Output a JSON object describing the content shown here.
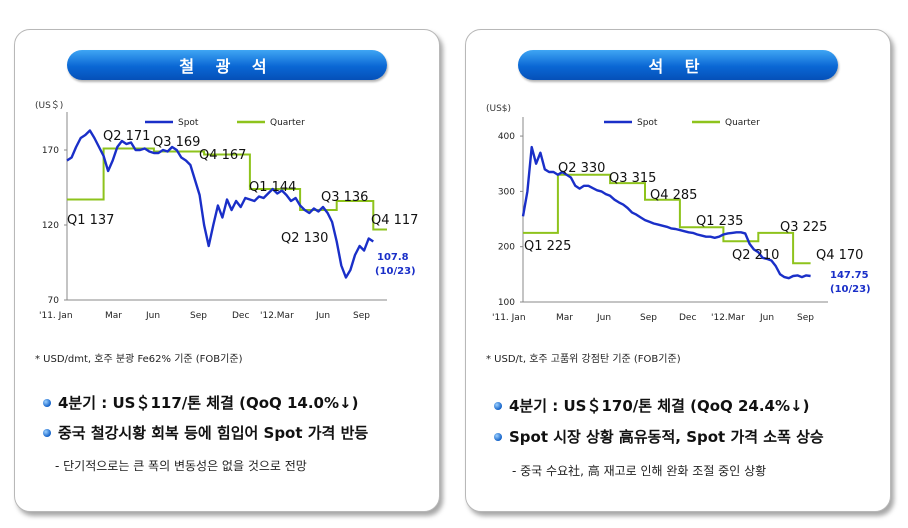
{
  "left": {
    "title": "철 광 석",
    "note": "* USD/dmt, 호주 분광 Fe62% 기준 (FOB기준)",
    "bullets": [
      "4분기 : US＄117/톤 체결 (QoQ 14.0%↓)",
      "중국 철강시황 회복 등에 힘입어 Spot 가격 반등"
    ],
    "sub": "- 단기적으로는 큰 폭의 변동성은 없을 것으로 전망"
  },
  "right": {
    "title": "석 탄",
    "note": "* USD/t, 호주 고품위 강점탄 기준 (FOB기준)",
    "bullets": [
      "4분기 : US＄170/톤 체결 (QoQ 24.4%↓)",
      "Spot 시장 상황 高유동적, Spot 가격 소폭 상승"
    ],
    "sub": "- 중국 수요社, 高 재고로 인해 완화 조절 중인 상황"
  },
  "chart_data": [
    {
      "type": "line",
      "unit": "(US＄)",
      "ylim": [
        70,
        190
      ],
      "yticks": [
        70,
        120,
        170
      ],
      "xlabels": [
        "'11. Jan",
        "Mar",
        "Jun",
        "Sep",
        "Dec",
        "'12.Mar",
        "Jun",
        "Sep"
      ],
      "legend": [
        "Spot",
        "Quarter"
      ],
      "colors": {
        "spot": "#1a2fc8",
        "quarter": "#8ec31c"
      },
      "spot": [
        [
          0,
          163
        ],
        [
          1,
          165
        ],
        [
          2,
          172
        ],
        [
          3,
          178
        ],
        [
          4,
          180
        ],
        [
          5,
          183
        ],
        [
          6,
          178
        ],
        [
          7,
          172
        ],
        [
          8,
          166
        ],
        [
          9,
          156
        ],
        [
          10,
          163
        ],
        [
          11,
          172
        ],
        [
          12,
          176
        ],
        [
          13,
          174
        ],
        [
          14,
          175
        ],
        [
          15,
          170
        ],
        [
          16,
          170
        ],
        [
          17,
          171
        ],
        [
          18,
          169
        ],
        [
          19,
          168
        ],
        [
          20,
          168
        ],
        [
          21,
          170
        ],
        [
          22,
          169
        ],
        [
          23,
          172
        ],
        [
          24,
          170
        ],
        [
          25,
          165
        ],
        [
          26,
          163
        ],
        [
          27,
          160
        ],
        [
          28,
          150
        ],
        [
          29,
          140
        ],
        [
          30,
          120
        ],
        [
          31,
          106
        ],
        [
          32,
          120
        ],
        [
          33,
          133
        ],
        [
          34,
          125
        ],
        [
          35,
          137
        ],
        [
          36,
          130
        ],
        [
          37,
          136
        ],
        [
          38,
          132
        ],
        [
          39,
          138
        ],
        [
          40,
          137
        ],
        [
          41,
          136
        ],
        [
          42,
          139
        ],
        [
          43,
          138
        ],
        [
          44,
          141
        ],
        [
          45,
          144
        ],
        [
          46,
          141
        ],
        [
          47,
          143
        ],
        [
          48,
          140
        ],
        [
          49,
          136
        ],
        [
          50,
          138
        ],
        [
          51,
          133
        ],
        [
          52,
          130
        ],
        [
          53,
          128
        ],
        [
          54,
          131
        ],
        [
          55,
          129
        ],
        [
          56,
          132
        ],
        [
          57,
          128
        ],
        [
          58,
          122
        ],
        [
          59,
          109
        ],
        [
          60,
          93
        ],
        [
          61,
          85
        ],
        [
          62,
          90
        ],
        [
          63,
          100
        ],
        [
          64,
          106
        ],
        [
          65,
          103
        ],
        [
          66,
          111
        ],
        [
          67,
          109
        ]
      ],
      "quarter": [
        [
          0,
          137
        ],
        [
          8,
          137
        ],
        [
          8,
          171
        ],
        [
          19,
          171
        ],
        [
          19,
          169
        ],
        [
          30,
          169
        ],
        [
          30,
          167
        ],
        [
          40,
          167
        ],
        [
          40,
          144
        ],
        [
          51,
          144
        ],
        [
          51,
          130
        ],
        [
          59,
          130
        ],
        [
          59,
          136
        ],
        [
          67,
          136
        ],
        [
          67,
          117
        ],
        [
          70,
          117
        ]
      ],
      "annotations": [
        "Q1 137",
        "Q2 171",
        "Q3 169",
        "Q4 167",
        "Q1 144",
        "Q2 130",
        "Q3 136",
        "Q4 117"
      ],
      "last_value": "107.8",
      "last_date": "(10/23)"
    },
    {
      "type": "line",
      "unit": "(US$)",
      "ylim": [
        100,
        420
      ],
      "yticks": [
        100,
        200,
        300,
        400
      ],
      "xlabels": [
        "'11. Jan",
        "Mar",
        "Jun",
        "Sep",
        "Dec",
        "'12.Mar",
        "Jun",
        "Sep"
      ],
      "legend": [
        "Spot",
        "Quarter"
      ],
      "colors": {
        "spot": "#1a2fc8",
        "quarter": "#8ec31c"
      },
      "spot": [
        [
          0,
          255
        ],
        [
          1,
          300
        ],
        [
          2,
          380
        ],
        [
          3,
          350
        ],
        [
          4,
          370
        ],
        [
          5,
          340
        ],
        [
          6,
          335
        ],
        [
          7,
          335
        ],
        [
          8,
          330
        ],
        [
          9,
          335
        ],
        [
          10,
          330
        ],
        [
          11,
          325
        ],
        [
          12,
          310
        ],
        [
          13,
          305
        ],
        [
          14,
          310
        ],
        [
          15,
          310
        ],
        [
          16,
          306
        ],
        [
          17,
          302
        ],
        [
          18,
          300
        ],
        [
          19,
          295
        ],
        [
          20,
          292
        ],
        [
          21,
          285
        ],
        [
          22,
          280
        ],
        [
          23,
          276
        ],
        [
          24,
          270
        ],
        [
          25,
          262
        ],
        [
          26,
          258
        ],
        [
          27,
          253
        ],
        [
          28,
          248
        ],
        [
          29,
          245
        ],
        [
          30,
          242
        ],
        [
          31,
          240
        ],
        [
          32,
          238
        ],
        [
          33,
          236
        ],
        [
          34,
          233
        ],
        [
          35,
          232
        ],
        [
          36,
          230
        ],
        [
          37,
          228
        ],
        [
          38,
          226
        ],
        [
          39,
          225
        ],
        [
          40,
          222
        ],
        [
          41,
          220
        ],
        [
          42,
          218
        ],
        [
          43,
          218
        ],
        [
          44,
          216
        ],
        [
          45,
          218
        ],
        [
          46,
          222
        ],
        [
          47,
          224
        ],
        [
          48,
          225
        ],
        [
          49,
          226
        ],
        [
          50,
          226
        ],
        [
          51,
          224
        ],
        [
          52,
          205
        ],
        [
          53,
          195
        ],
        [
          54,
          190
        ],
        [
          55,
          180
        ],
        [
          56,
          178
        ],
        [
          57,
          175
        ],
        [
          58,
          165
        ],
        [
          59,
          150
        ],
        [
          60,
          145
        ],
        [
          61,
          143
        ],
        [
          62,
          147
        ],
        [
          63,
          148
        ],
        [
          64,
          145
        ],
        [
          65,
          148
        ],
        [
          66,
          147
        ]
      ],
      "quarter": [
        [
          0,
          225
        ],
        [
          8,
          225
        ],
        [
          8,
          330
        ],
        [
          20,
          330
        ],
        [
          20,
          315
        ],
        [
          28,
          315
        ],
        [
          28,
          285
        ],
        [
          36,
          285
        ],
        [
          36,
          235
        ],
        [
          46,
          235
        ],
        [
          46,
          210
        ],
        [
          54,
          210
        ],
        [
          54,
          225
        ],
        [
          62,
          225
        ],
        [
          62,
          170
        ],
        [
          66,
          170
        ]
      ],
      "annotations": [
        "Q1 225",
        "Q2 330",
        "Q3 315",
        "Q4 285",
        "Q1 235",
        "Q2 210",
        "Q3 225",
        "Q4 170"
      ],
      "last_value": "147.75",
      "last_date": "(10/23)"
    }
  ]
}
